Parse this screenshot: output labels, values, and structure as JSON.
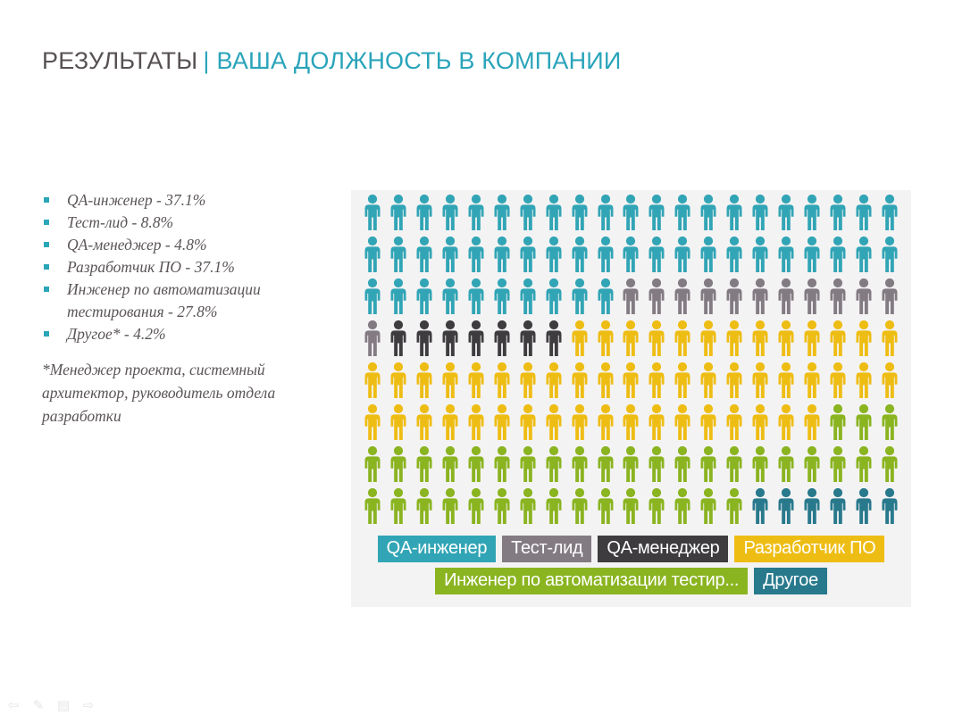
{
  "header": {
    "title_left": "РЕЗУЛЬТАТЫ",
    "separator": "|",
    "title_right": "ВАША ДОЛЖНОСТЬ В КОМПАНИИ"
  },
  "list": {
    "items": [
      "QA-инженер - 37.1%",
      "Тест-лид - 8.8%",
      "QA-менеджер - 4.8%",
      "Разработчик ПО - 37.1%",
      "Инженер по автоматизации тестирования - 27.8%",
      "Другое* - 4.2%"
    ],
    "footnote": "*Менеджер проекта, системный архитектор, руководитель отдела разработки"
  },
  "chart_data": {
    "type": "pictogram",
    "columns": 21,
    "rows": 8,
    "total_icons": 168,
    "background": "#f4f3f4",
    "legend_position": "bottom",
    "categories": [
      {
        "key": "qa-engineer",
        "name": "QA-инженер",
        "percent": 37.1,
        "icons": 52,
        "color": "#31a5b5"
      },
      {
        "key": "test-lead",
        "name": "Тест-лид",
        "percent": 8.8,
        "icons": 12,
        "color": "#837b82"
      },
      {
        "key": "qa-manager",
        "name": "QA-менеджер",
        "percent": 4.8,
        "icons": 7,
        "color": "#3e3c3f"
      },
      {
        "key": "software-developer",
        "name": "Разработчик ПО",
        "percent": 37.1,
        "icons": 52,
        "color": "#eebd14"
      },
      {
        "key": "automation-engineer",
        "name": "Инженер по автоматизации тестирования",
        "legend_label": "Инженер по автоматизации тестир...",
        "percent": 27.8,
        "icons": 39,
        "color": "#8ab420"
      },
      {
        "key": "other",
        "name": "Другое",
        "percent": 4.2,
        "icons": 6,
        "color": "#28798c"
      }
    ],
    "legend_rows": [
      [
        0,
        1,
        2,
        3
      ],
      [
        4,
        5
      ]
    ]
  },
  "nav": {
    "glyphs": [
      "⇦",
      "✎",
      "▤",
      "⇨"
    ]
  },
  "colors": {
    "accent_teal": "#29a4ba",
    "title_gray": "#575152",
    "text_gray": "#5b5556",
    "panel_bg": "#f4f3f4"
  }
}
